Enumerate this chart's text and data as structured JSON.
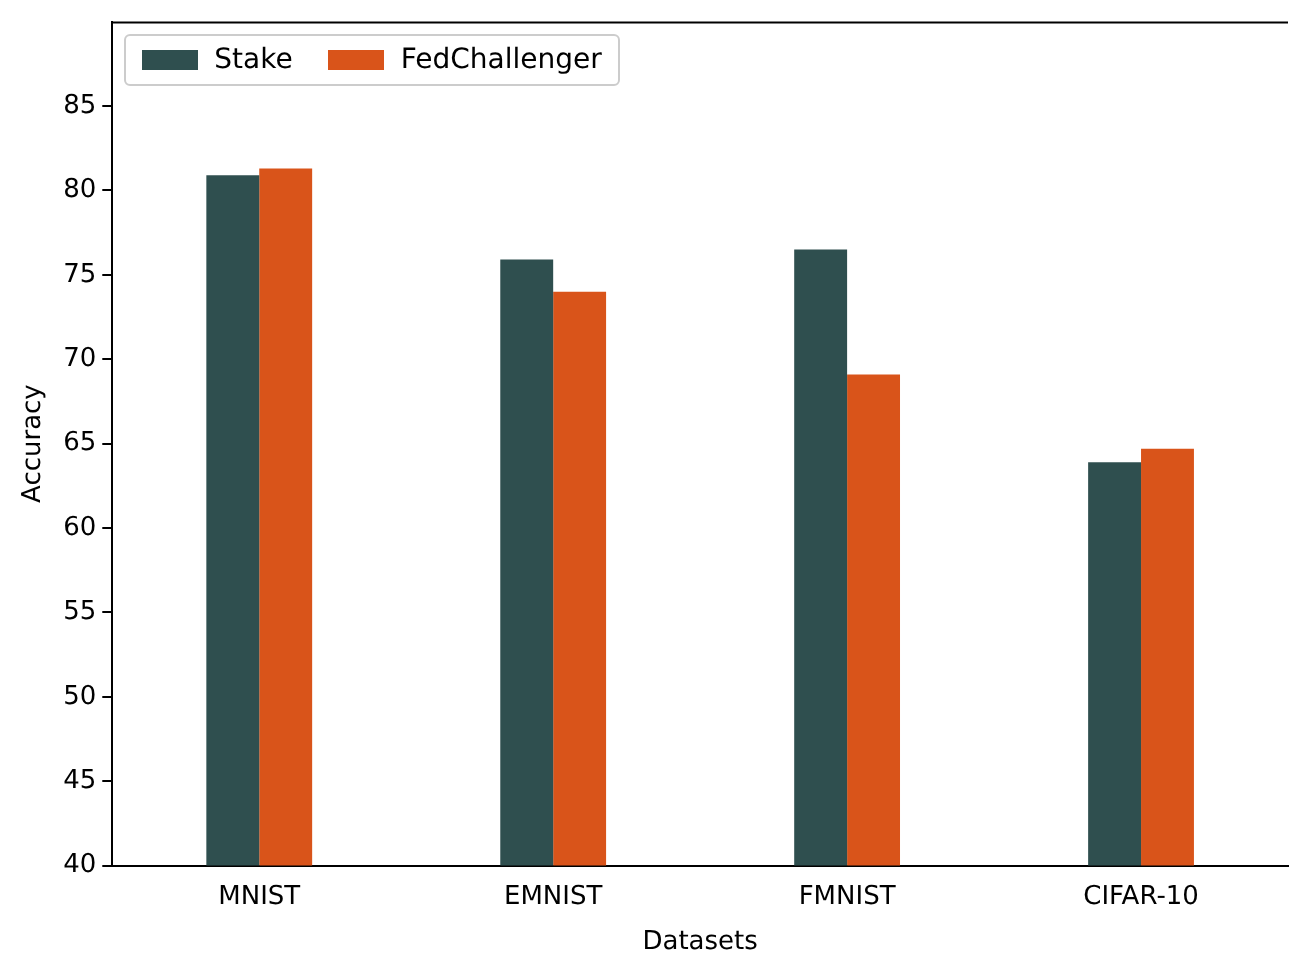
{
  "chart_data": {
    "type": "bar",
    "xlabel": "Datasets",
    "ylabel": "Accuracy",
    "categories": [
      "MNIST",
      "EMNIST",
      "FMNIST",
      "CIFAR-10"
    ],
    "series": [
      {
        "name": "Stake",
        "color": "#2f4f4f",
        "values": [
          80.9,
          75.9,
          76.5,
          63.9
        ]
      },
      {
        "name": "FedChallenger",
        "color": "#d9541a",
        "values": [
          81.3,
          74.0,
          69.1,
          64.7
        ]
      }
    ],
    "ylim": [
      40,
      90
    ],
    "yticks": [
      40,
      45,
      50,
      55,
      60,
      65,
      70,
      75,
      80,
      85
    ],
    "grid": false,
    "legend": "top left"
  }
}
